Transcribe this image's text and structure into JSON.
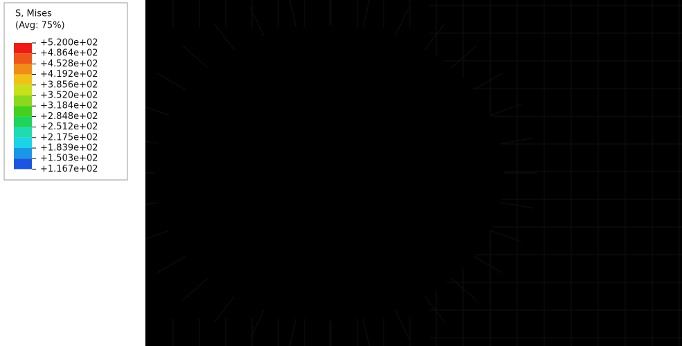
{
  "legend": {
    "title": "S, Mises",
    "subtitle": "(Avg: 75%)",
    "levels": [
      "+5.200e+02",
      "+4.864e+02",
      "+4.528e+02",
      "+4.192e+02",
      "+3.856e+02",
      "+3.520e+02",
      "+3.184e+02",
      "+2.848e+02",
      "+2.512e+02",
      "+2.175e+02",
      "+1.839e+02",
      "+1.503e+02",
      "+1.167e+02"
    ],
    "colors": [
      "#ee1c14",
      "#f0561a",
      "#f28c18",
      "#eec316",
      "#c8e01c",
      "#8cd81e",
      "#46d01e",
      "#1ed45a",
      "#1edcb0",
      "#1cd2e6",
      "#1a96e6",
      "#1a56e0",
      "#0c1ede"
    ]
  }
}
